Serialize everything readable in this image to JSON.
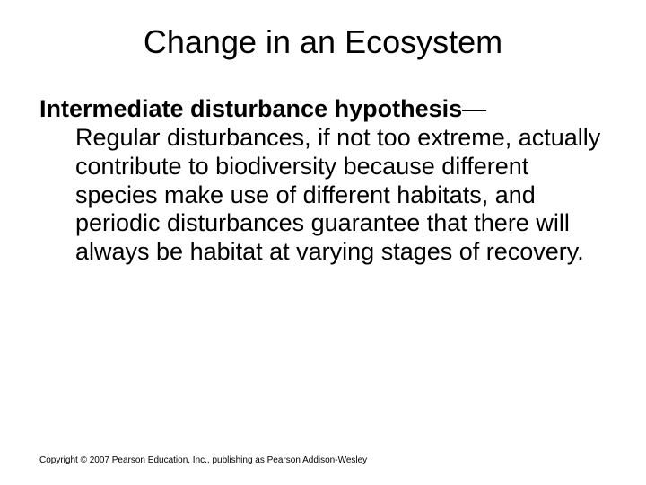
{
  "slide": {
    "title": "Change in an Ecosystem",
    "term": "Intermediate disturbance hypothesis",
    "dash": "—",
    "definition": "Regular disturbances, if not too extreme, actually contribute to biodiversity because different species make use of different habitats, and periodic disturbances guarantee that there will always be habitat at varying stages of recovery.",
    "copyright": "Copyright © 2007 Pearson Education, Inc., publishing as Pearson Addison-Wesley"
  },
  "style": {
    "background_color": "#ffffff",
    "text_color": "#000000",
    "title_fontsize": 36,
    "body_fontsize": 27,
    "copyright_fontsize": 10,
    "font_family": "Arial"
  }
}
